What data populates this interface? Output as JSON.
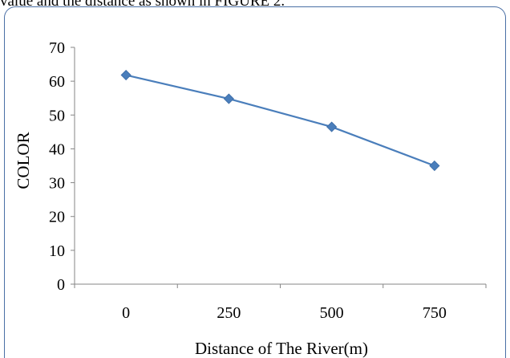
{
  "caption_fragment": "value and the distance as shown in FIGURE 2.",
  "chart_data": {
    "type": "line",
    "title": "",
    "xlabel": "Distance of The River(m)",
    "ylabel": "COLOR",
    "categories": [
      "0",
      "250",
      "500",
      "750"
    ],
    "series": [
      {
        "values": [
          61.8,
          54.8,
          46.5,
          35.0
        ]
      }
    ],
    "ylim": [
      0,
      70
    ],
    "yticks": [
      0,
      10,
      20,
      30,
      40,
      50,
      60,
      70
    ],
    "grid": false,
    "legend": "none",
    "colors": {
      "line": "#4a7ebb",
      "marker": "#4a7ebb",
      "frame": "#4a6fa5"
    },
    "marker": "diamond"
  }
}
